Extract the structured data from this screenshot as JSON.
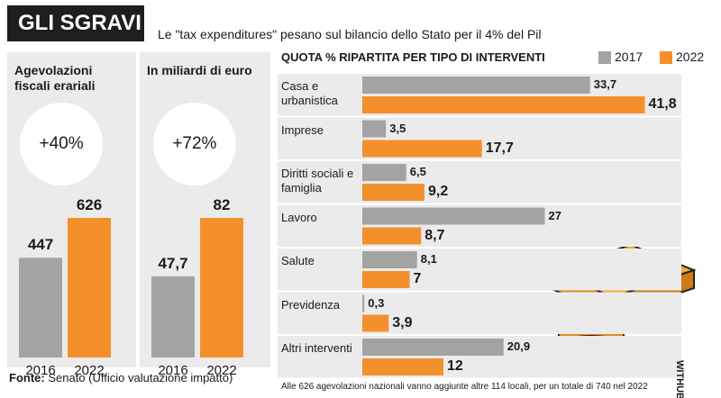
{
  "header": {
    "title": "GLI SGRAVI",
    "subtitle": "Le \"tax expenditures\" pesano sul bilancio dello Stato per il 4% del Pil"
  },
  "chart_data": [
    {
      "type": "bar",
      "title": "Agevolazioni fiscali erariali",
      "annotation": "+40%",
      "categories": [
        "2016",
        "2022"
      ],
      "values": [
        447,
        626
      ],
      "colors": [
        "#a3a3a3",
        "#f4902c"
      ]
    },
    {
      "type": "bar",
      "title": "In miliardi di euro",
      "annotation": "+72%",
      "categories": [
        "2016",
        "2022"
      ],
      "values": [
        47.7,
        82
      ],
      "value_labels": [
        "47,7",
        "82"
      ],
      "colors": [
        "#a3a3a3",
        "#f4902c"
      ]
    },
    {
      "type": "bar",
      "orientation": "horizontal",
      "title": "QUOTA % RIPARTITA PER TIPO DI INTERVENTI",
      "categories": [
        "Casa e urbanistica",
        "Imprese",
        "Diritti sociali e famiglia",
        "Lavoro",
        "Salute",
        "Previdenza",
        "Altri interventi"
      ],
      "series": [
        {
          "name": "2017",
          "color": "#a3a3a3",
          "values": [
            33.7,
            3.5,
            6.5,
            27,
            8.1,
            0.3,
            20.9
          ],
          "value_labels": [
            "33,7",
            "3,5",
            "6,5",
            "27",
            "8,1",
            "0,3",
            "20,9"
          ]
        },
        {
          "name": "2022",
          "color": "#f4902c",
          "values": [
            41.8,
            17.7,
            9.2,
            8.7,
            7,
            3.9,
            12
          ],
          "value_labels": [
            "41,8",
            "17,7",
            "9,2",
            "8,7",
            "7",
            "3,9",
            "12"
          ]
        }
      ],
      "legend": "top-right"
    }
  ],
  "footer": {
    "source_label": "Fonte:",
    "source": "Senato (Ufficio valutazione impatto)",
    "note": "Alle 626 agevolazioni nazionali vanno aggiunte altre 114 locali, per un totale di 740 nel 2022",
    "credit": "WITHUB"
  }
}
